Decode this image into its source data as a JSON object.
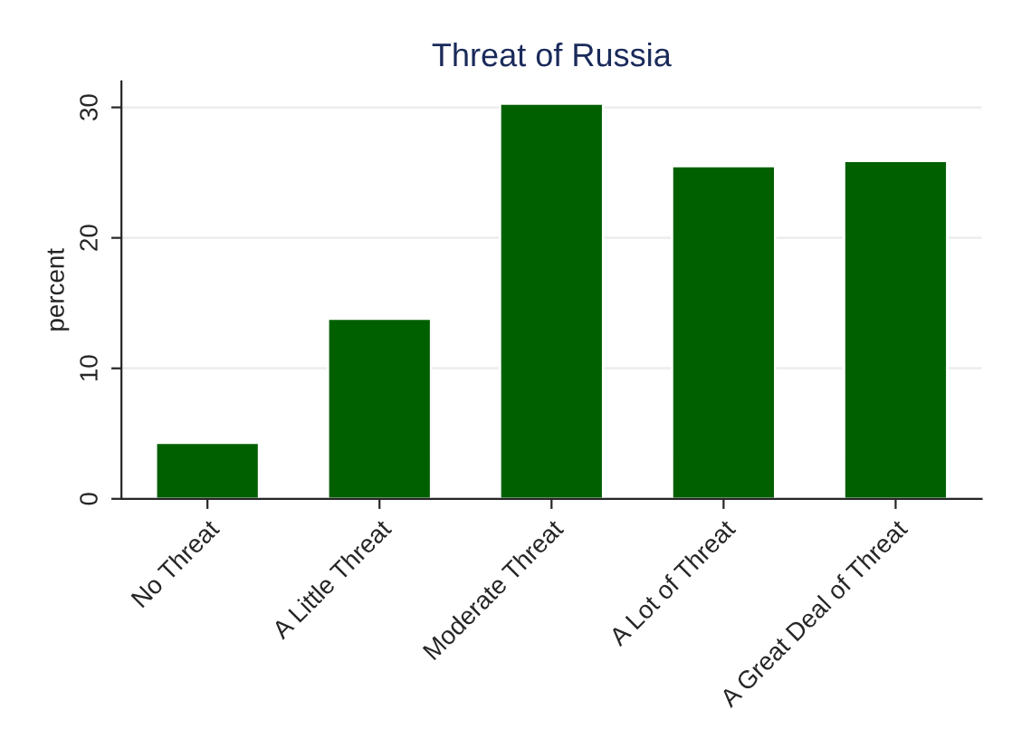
{
  "chart_data": {
    "type": "bar",
    "title": "Threat of Russia",
    "ylabel": "percent",
    "categories": [
      "No Threat",
      "A Little Threat",
      "Moderate Threat",
      "A Lot of Threat",
      "A Great Deal of Threat"
    ],
    "values": [
      4.3,
      13.8,
      30.3,
      25.5,
      25.9
    ],
    "color": "#006000",
    "ylim": [
      0,
      32
    ],
    "yticks": [
      0,
      10,
      20,
      30
    ],
    "grid": "y",
    "legend": false
  }
}
